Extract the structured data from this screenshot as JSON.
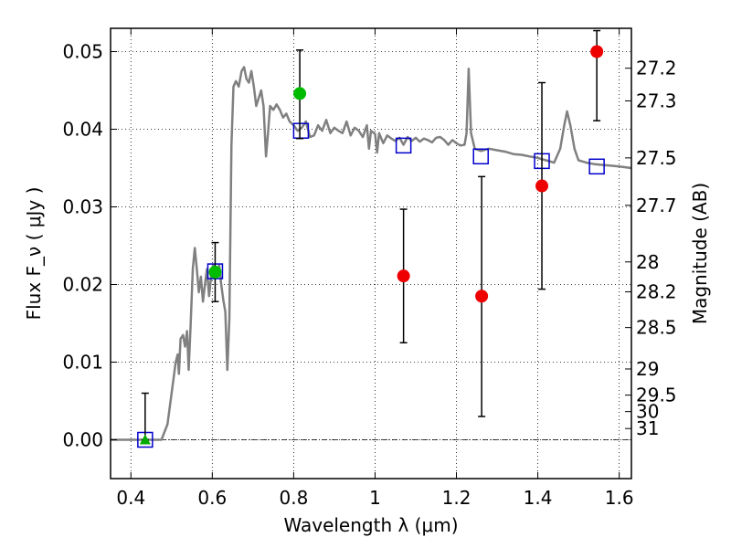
{
  "chart_data": {
    "type": "scatter",
    "xlabel": "Wavelength  λ (μm)",
    "ylabel_left": "Flux  F_ν  ( μJy )",
    "ylabel_right": "Magnitude (AB)",
    "xlim": [
      0.35,
      1.63
    ],
    "ylim": [
      -0.005,
      0.053
    ],
    "grid": true,
    "x_ticks": [
      {
        "value": 0.4,
        "label": "0.4"
      },
      {
        "value": 0.6,
        "label": "0.6"
      },
      {
        "value": 0.8,
        "label": "0.8"
      },
      {
        "value": 1.0,
        "label": "1"
      },
      {
        "value": 1.2,
        "label": "1.2"
      },
      {
        "value": 1.4,
        "label": "1.4"
      },
      {
        "value": 1.6,
        "label": "1.6"
      }
    ],
    "y_ticks": [
      {
        "value": 0.0,
        "label": "0.00"
      },
      {
        "value": 0.01,
        "label": "0.01"
      },
      {
        "value": 0.02,
        "label": "0.02"
      },
      {
        "value": 0.03,
        "label": "0.03"
      },
      {
        "value": 0.04,
        "label": "0.04"
      },
      {
        "value": 0.05,
        "label": "0.05"
      }
    ],
    "right_ticks": [
      {
        "mag": 27.2,
        "label": "27.2"
      },
      {
        "mag": 27.3,
        "label": "27.3"
      },
      {
        "mag": 27.5,
        "label": "27.5"
      },
      {
        "mag": 27.7,
        "label": "27.7"
      },
      {
        "mag": 28,
        "label": "28"
      },
      {
        "mag": 28.2,
        "label": "28.2"
      },
      {
        "mag": 28.5,
        "label": "28.5"
      },
      {
        "mag": 29,
        "label": "29"
      },
      {
        "mag": 29.5,
        "label": "29.5"
      },
      {
        "mag": 30,
        "label": "30"
      },
      {
        "mag": 31,
        "label": "31"
      }
    ],
    "series": [
      {
        "kind": "line",
        "color": "#808080",
        "points": [
          [
            0.35,
            0.0
          ],
          [
            0.46,
            0.0
          ],
          [
            0.475,
            0.0
          ],
          [
            0.49,
            0.002
          ],
          [
            0.5,
            0.006
          ],
          [
            0.51,
            0.01
          ],
          [
            0.515,
            0.011
          ],
          [
            0.518,
            0.0085
          ],
          [
            0.522,
            0.013
          ],
          [
            0.528,
            0.0135
          ],
          [
            0.533,
            0.012
          ],
          [
            0.538,
            0.014
          ],
          [
            0.542,
            0.009
          ],
          [
            0.547,
            0.015
          ],
          [
            0.552,
            0.022
          ],
          [
            0.557,
            0.0247
          ],
          [
            0.562,
            0.022
          ],
          [
            0.567,
            0.019
          ],
          [
            0.572,
            0.021
          ],
          [
            0.577,
            0.0178
          ],
          [
            0.582,
            0.02
          ],
          [
            0.587,
            0.022
          ],
          [
            0.592,
            0.0185
          ],
          [
            0.597,
            0.021
          ],
          [
            0.602,
            0.0225
          ],
          [
            0.607,
            0.0215
          ],
          [
            0.612,
            0.021
          ],
          [
            0.617,
            0.0225
          ],
          [
            0.622,
            0.02
          ],
          [
            0.627,
            0.018
          ],
          [
            0.632,
            0.0165
          ],
          [
            0.637,
            0.009
          ],
          [
            0.642,
            0.0155
          ],
          [
            0.647,
            0.038
          ],
          [
            0.652,
            0.0455
          ],
          [
            0.658,
            0.0462
          ],
          [
            0.665,
            0.0455
          ],
          [
            0.672,
            0.0475
          ],
          [
            0.678,
            0.048
          ],
          [
            0.684,
            0.0465
          ],
          [
            0.69,
            0.046
          ],
          [
            0.696,
            0.0475
          ],
          [
            0.702,
            0.0455
          ],
          [
            0.708,
            0.043
          ],
          [
            0.714,
            0.044
          ],
          [
            0.72,
            0.045
          ],
          [
            0.726,
            0.043
          ],
          [
            0.732,
            0.0365
          ],
          [
            0.737,
            0.0395
          ],
          [
            0.742,
            0.043
          ],
          [
            0.75,
            0.0425
          ],
          [
            0.758,
            0.0432
          ],
          [
            0.766,
            0.0425
          ],
          [
            0.774,
            0.0415
          ],
          [
            0.782,
            0.042
          ],
          [
            0.79,
            0.041
          ],
          [
            0.8,
            0.0405
          ],
          [
            0.81,
            0.0398
          ],
          [
            0.82,
            0.0402
          ],
          [
            0.83,
            0.041
          ],
          [
            0.84,
            0.039
          ],
          [
            0.85,
            0.0392
          ],
          [
            0.86,
            0.0405
          ],
          [
            0.87,
            0.0398
          ],
          [
            0.88,
            0.0412
          ],
          [
            0.89,
            0.0395
          ],
          [
            0.9,
            0.0402
          ],
          [
            0.91,
            0.0398
          ],
          [
            0.92,
            0.0395
          ],
          [
            0.93,
            0.041
          ],
          [
            0.94,
            0.0392
          ],
          [
            0.95,
            0.0402
          ],
          [
            0.96,
            0.0398
          ],
          [
            0.97,
            0.039
          ],
          [
            0.98,
            0.0405
          ],
          [
            0.985,
            0.0375
          ],
          [
            0.99,
            0.0398
          ],
          [
            1.0,
            0.0394
          ],
          [
            1.005,
            0.037
          ],
          [
            1.01,
            0.0395
          ],
          [
            1.02,
            0.0382
          ],
          [
            1.03,
            0.0392
          ],
          [
            1.04,
            0.0388
          ],
          [
            1.05,
            0.0385
          ],
          [
            1.06,
            0.0389
          ],
          [
            1.07,
            0.038
          ],
          [
            1.08,
            0.039
          ],
          [
            1.09,
            0.0385
          ],
          [
            1.1,
            0.0389
          ],
          [
            1.11,
            0.0384
          ],
          [
            1.12,
            0.0388
          ],
          [
            1.13,
            0.0386
          ],
          [
            1.14,
            0.0383
          ],
          [
            1.15,
            0.0389
          ],
          [
            1.16,
            0.039
          ],
          [
            1.17,
            0.0386
          ],
          [
            1.18,
            0.038
          ],
          [
            1.19,
            0.0386
          ],
          [
            1.2,
            0.0382
          ],
          [
            1.21,
            0.0379
          ],
          [
            1.22,
            0.038
          ],
          [
            1.225,
            0.0395
          ],
          [
            1.23,
            0.0478
          ],
          [
            1.236,
            0.0395
          ],
          [
            1.245,
            0.0375
          ],
          [
            1.26,
            0.0372
          ],
          [
            1.28,
            0.0375
          ],
          [
            1.3,
            0.0373
          ],
          [
            1.32,
            0.0371
          ],
          [
            1.34,
            0.0368
          ],
          [
            1.36,
            0.0367
          ],
          [
            1.38,
            0.0365
          ],
          [
            1.4,
            0.0363
          ],
          [
            1.42,
            0.036
          ],
          [
            1.44,
            0.0357
          ],
          [
            1.455,
            0.0375
          ],
          [
            1.465,
            0.0405
          ],
          [
            1.472,
            0.0423
          ],
          [
            1.48,
            0.0405
          ],
          [
            1.49,
            0.0375
          ],
          [
            1.5,
            0.036
          ],
          [
            1.52,
            0.0357
          ],
          [
            1.54,
            0.0355
          ],
          [
            1.56,
            0.0354
          ],
          [
            1.58,
            0.0353
          ],
          [
            1.6,
            0.0352
          ],
          [
            1.63,
            0.035
          ]
        ]
      },
      {
        "kind": "open-square",
        "color": "#0000cc",
        "points": [
          [
            0.435,
            0.0
          ],
          [
            0.607,
            0.0217
          ],
          [
            0.818,
            0.0398
          ],
          [
            1.07,
            0.0379
          ],
          [
            1.26,
            0.0365
          ],
          [
            1.41,
            0.0359
          ],
          [
            1.545,
            0.0352
          ]
        ]
      },
      {
        "kind": "errorbar",
        "color": "#000000",
        "bars": [
          [
            0.435,
            0.0,
            0.006
          ],
          [
            0.607,
            0.0178,
            0.0254
          ],
          [
            0.815,
            0.0388,
            0.0502
          ],
          [
            1.07,
            0.0125,
            0.0297
          ],
          [
            1.262,
            0.003,
            0.0339
          ],
          [
            1.41,
            0.0194,
            0.046
          ],
          [
            1.545,
            0.0411,
            0.0527
          ]
        ]
      },
      {
        "kind": "filled-circle",
        "color": "#00bb00",
        "points": [
          [
            0.607,
            0.0216
          ],
          [
            0.815,
            0.0446
          ]
        ]
      },
      {
        "kind": "filled-triangle",
        "color": "#00aa00",
        "points": [
          [
            0.435,
            0.0
          ]
        ]
      },
      {
        "kind": "filled-circle",
        "color": "#ee0000",
        "points": [
          [
            1.07,
            0.0211
          ],
          [
            1.262,
            0.0185
          ],
          [
            1.41,
            0.0327
          ],
          [
            1.545,
            0.05
          ]
        ]
      }
    ]
  }
}
